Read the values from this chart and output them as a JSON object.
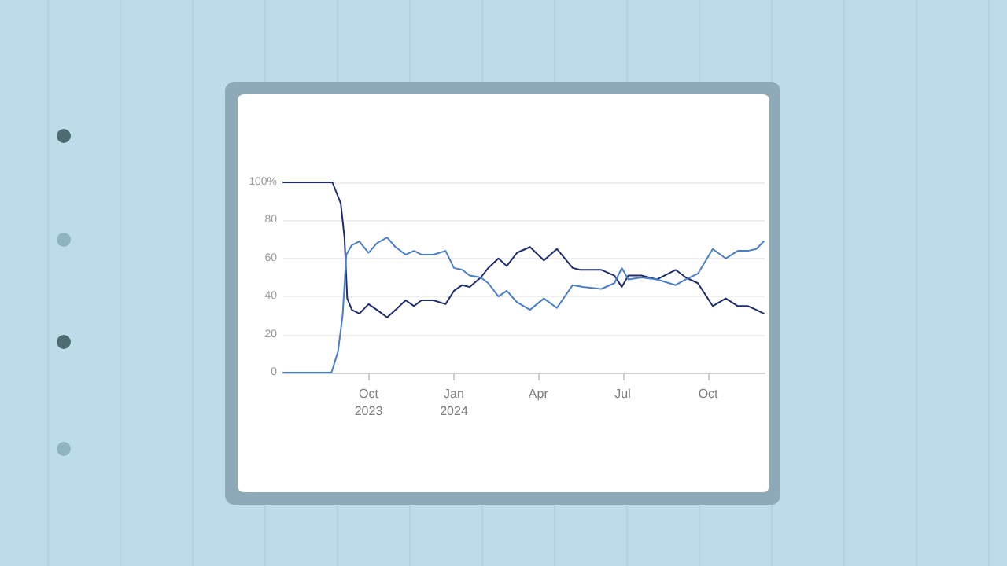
{
  "chart_data": {
    "type": "line",
    "xlim": [
      "2023-07-01",
      "2024-12-01"
    ],
    "xticks": [
      {
        "value": "2023-10-01",
        "label": "Oct\n2023"
      },
      {
        "value": "2024-01-01",
        "label": "Jan\n2024"
      },
      {
        "value": "2024-04-01",
        "label": "Apr"
      },
      {
        "value": "2024-07-01",
        "label": "Jul"
      },
      {
        "value": "2024-10-01",
        "label": "Oct"
      }
    ],
    "ylim": [
      0,
      100
    ],
    "yticks": [
      0,
      20,
      40,
      60,
      80,
      {
        "value": 100,
        "label": "100%"
      }
    ],
    "grid": "y",
    "marker": "none",
    "line_style": "solid",
    "series": [
      {
        "color": "#1f2d6e",
        "x": [
          "2023-07-01",
          "2023-08-23",
          "2023-09-01",
          "2023-09-05",
          "2023-09-08",
          "2023-09-13",
          "2023-09-21",
          "2023-10-01",
          "2023-10-10",
          "2023-10-21",
          "2023-10-30",
          "2023-11-10",
          "2023-11-19",
          "2023-11-27",
          "2023-12-10",
          "2023-12-23",
          "2024-01-01",
          "2024-01-10",
          "2024-01-18",
          "2024-01-30",
          "2024-02-07",
          "2024-02-18",
          "2024-02-27",
          "2024-03-09",
          "2024-03-23",
          "2024-04-07",
          "2024-04-21",
          "2024-05-08",
          "2024-05-16",
          "2024-06-08",
          "2024-06-22",
          "2024-06-30",
          "2024-07-07",
          "2024-07-21",
          "2024-08-07",
          "2024-08-27",
          "2024-09-07",
          "2024-09-20",
          "2024-10-06",
          "2024-10-20",
          "2024-11-02",
          "2024-11-13",
          "2024-11-22",
          "2024-11-30"
        ],
        "values": [
          100,
          100,
          89,
          71,
          39,
          33,
          31,
          36,
          33,
          29,
          33,
          38,
          35,
          38,
          38,
          36,
          43,
          46,
          45,
          50,
          55,
          60,
          56,
          63,
          66,
          59,
          65,
          55,
          54,
          54,
          51,
          45,
          51,
          51,
          49,
          54,
          50,
          47,
          35,
          39,
          35,
          35,
          33,
          31
        ]
      },
      {
        "color": "#4a7fc6",
        "x": [
          "2023-07-01",
          "2023-08-22",
          "2023-08-29",
          "2023-09-03",
          "2023-09-07",
          "2023-09-13",
          "2023-09-21",
          "2023-10-01",
          "2023-10-10",
          "2023-10-21",
          "2023-10-30",
          "2023-11-10",
          "2023-11-19",
          "2023-11-27",
          "2023-12-10",
          "2023-12-23",
          "2024-01-01",
          "2024-01-10",
          "2024-01-18",
          "2024-01-30",
          "2024-02-07",
          "2024-02-18",
          "2024-02-27",
          "2024-03-09",
          "2024-03-23",
          "2024-04-07",
          "2024-04-21",
          "2024-05-08",
          "2024-05-19",
          "2024-06-08",
          "2024-06-22",
          "2024-06-30",
          "2024-07-07",
          "2024-07-21",
          "2024-08-07",
          "2024-08-27",
          "2024-09-07",
          "2024-09-20",
          "2024-10-06",
          "2024-10-20",
          "2024-11-02",
          "2024-11-13",
          "2024-11-22",
          "2024-11-30"
        ],
        "values": [
          0,
          0,
          11,
          30,
          62,
          67,
          69,
          63,
          68,
          71,
          66,
          62,
          64,
          62,
          62,
          64,
          55,
          54,
          51,
          50,
          47,
          40,
          43,
          37,
          33,
          39,
          34,
          46,
          45,
          44,
          47,
          55,
          49,
          50,
          49,
          46,
          49,
          52,
          65,
          60,
          64,
          64,
          65,
          69
        ]
      }
    ]
  }
}
